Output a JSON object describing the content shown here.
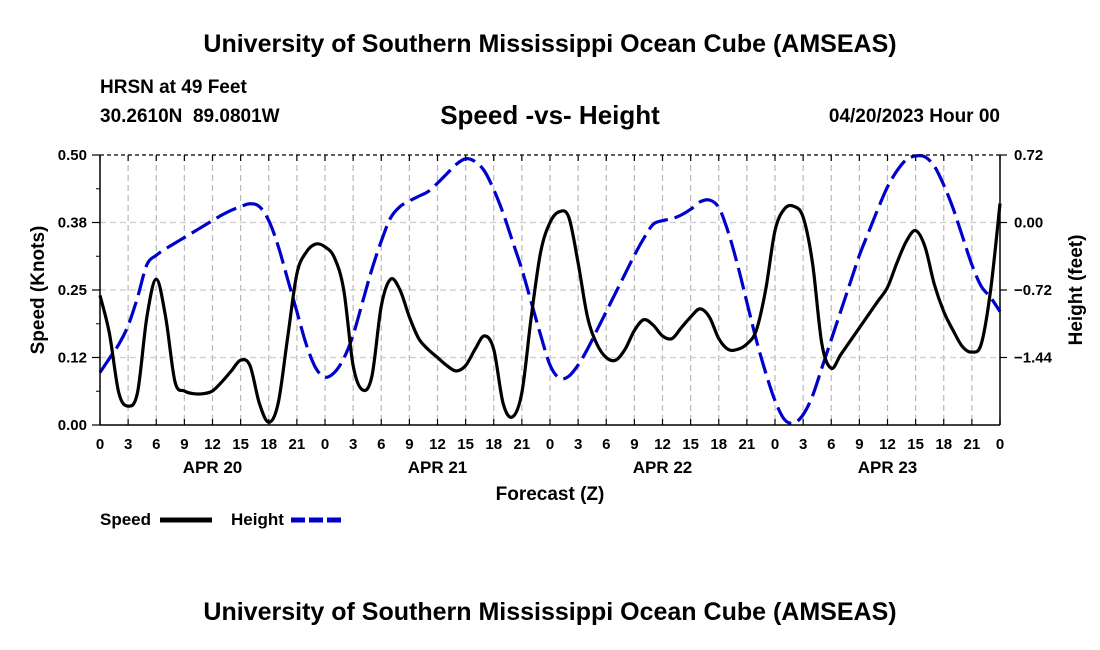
{
  "header": {
    "title": "University of Southern Mississippi Ocean Cube (AMSEAS)",
    "station": "HRSN at 49 Feet",
    "latitude": "30.2610N",
    "longitude": "89.0801W",
    "subtitle": "Speed -vs- Height",
    "run_time": "04/20/2023 Hour 00"
  },
  "footer": {
    "title": "University of Southern Mississippi Ocean Cube (AMSEAS)"
  },
  "chart_data": {
    "type": "line",
    "title": "Speed -vs- Height",
    "xlabel": "Forecast (Z)",
    "ylabel_left": "Speed (Knots)",
    "ylabel_right": "Height (feet)",
    "x_range_hours": [
      0,
      96
    ],
    "x_ticks": [
      0,
      3,
      6,
      9,
      12,
      15,
      18,
      21,
      24,
      27,
      30,
      33,
      36,
      39,
      42,
      45,
      48,
      51,
      54,
      57,
      60,
      63,
      66,
      69,
      72,
      75,
      78,
      81,
      84,
      87,
      90,
      93,
      96
    ],
    "x_tick_labels": [
      "0",
      "3",
      "6",
      "9",
      "12",
      "15",
      "18",
      "21",
      "0",
      "3",
      "6",
      "9",
      "12",
      "15",
      "18",
      "21",
      "0",
      "3",
      "6",
      "9",
      "12",
      "15",
      "18",
      "21",
      "0",
      "3",
      "6",
      "9",
      "12",
      "15",
      "18",
      "21",
      "0"
    ],
    "day_labels": [
      {
        "hour": 12,
        "label": "APR 20"
      },
      {
        "hour": 36,
        "label": "APR 21"
      },
      {
        "hour": 60,
        "label": "APR 22"
      },
      {
        "hour": 84,
        "label": "APR 23"
      }
    ],
    "y_left_range": [
      0,
      0.5
    ],
    "y_left_ticks": [
      0,
      0.125,
      0.25,
      0.375,
      0.5
    ],
    "y_left_tick_labels": [
      "0.00",
      "0.12",
      "0.25",
      "0.38",
      "0.50"
    ],
    "y_right_range": [
      -2.16,
      0.72
    ],
    "y_right_ticks": [
      -1.44,
      -0.72,
      0.0,
      0.72
    ],
    "y_right_tick_labels": [
      "−1.44",
      "−0.72",
      "0.00",
      "0.72"
    ],
    "grid": true,
    "series": [
      {
        "name": "Speed",
        "axis": "left",
        "color": "#000000",
        "style": "solid",
        "points": [
          [
            0,
            0.24
          ],
          [
            1,
            0.17
          ],
          [
            2,
            0.06
          ],
          [
            3,
            0.035
          ],
          [
            4,
            0.06
          ],
          [
            5,
            0.2
          ],
          [
            6,
            0.27
          ],
          [
            7,
            0.2
          ],
          [
            8,
            0.08
          ],
          [
            9,
            0.063
          ],
          [
            10,
            0.058
          ],
          [
            11,
            0.058
          ],
          [
            12,
            0.063
          ],
          [
            13,
            0.08
          ],
          [
            14,
            0.1
          ],
          [
            15,
            0.12
          ],
          [
            16,
            0.11
          ],
          [
            17,
            0.04
          ],
          [
            18,
            0.005
          ],
          [
            19,
            0.04
          ],
          [
            20,
            0.16
          ],
          [
            21,
            0.28
          ],
          [
            22,
            0.32
          ],
          [
            23,
            0.335
          ],
          [
            24,
            0.33
          ],
          [
            25,
            0.31
          ],
          [
            26,
            0.25
          ],
          [
            27,
            0.11
          ],
          [
            28,
            0.065
          ],
          [
            29,
            0.09
          ],
          [
            30,
            0.22
          ],
          [
            31,
            0.27
          ],
          [
            32,
            0.25
          ],
          [
            33,
            0.2
          ],
          [
            34,
            0.16
          ],
          [
            35,
            0.14
          ],
          [
            36,
            0.125
          ],
          [
            37,
            0.11
          ],
          [
            38,
            0.1
          ],
          [
            39,
            0.11
          ],
          [
            40,
            0.14
          ],
          [
            41,
            0.165
          ],
          [
            42,
            0.14
          ],
          [
            43,
            0.04
          ],
          [
            44,
            0.015
          ],
          [
            45,
            0.06
          ],
          [
            46,
            0.2
          ],
          [
            47,
            0.32
          ],
          [
            48,
            0.375
          ],
          [
            49,
            0.395
          ],
          [
            50,
            0.385
          ],
          [
            51,
            0.3
          ],
          [
            52,
            0.2
          ],
          [
            53,
            0.15
          ],
          [
            54,
            0.125
          ],
          [
            55,
            0.12
          ],
          [
            56,
            0.14
          ],
          [
            57,
            0.175
          ],
          [
            58,
            0.195
          ],
          [
            59,
            0.185
          ],
          [
            60,
            0.165
          ],
          [
            61,
            0.16
          ],
          [
            62,
            0.18
          ],
          [
            63,
            0.2
          ],
          [
            64,
            0.215
          ],
          [
            65,
            0.2
          ],
          [
            66,
            0.16
          ],
          [
            67,
            0.14
          ],
          [
            68,
            0.14
          ],
          [
            69,
            0.15
          ],
          [
            70,
            0.175
          ],
          [
            71,
            0.25
          ],
          [
            72,
            0.36
          ],
          [
            73,
            0.4
          ],
          [
            74,
            0.405
          ],
          [
            75,
            0.385
          ],
          [
            76,
            0.3
          ],
          [
            77,
            0.15
          ],
          [
            78,
            0.105
          ],
          [
            79,
            0.13
          ],
          [
            80,
            0.155
          ],
          [
            81,
            0.18
          ],
          [
            82,
            0.205
          ],
          [
            83,
            0.23
          ],
          [
            84,
            0.255
          ],
          [
            85,
            0.3
          ],
          [
            86,
            0.34
          ],
          [
            87,
            0.36
          ],
          [
            88,
            0.33
          ],
          [
            89,
            0.26
          ],
          [
            90,
            0.21
          ],
          [
            91,
            0.175
          ],
          [
            92,
            0.145
          ],
          [
            93,
            0.135
          ],
          [
            94,
            0.15
          ],
          [
            95,
            0.25
          ],
          [
            96,
            0.41
          ]
        ]
      },
      {
        "name": "Height",
        "axis": "right",
        "color": "#0000cc",
        "style": "dashed",
        "points": [
          [
            0,
            -1.6
          ],
          [
            1,
            -1.45
          ],
          [
            2,
            -1.3
          ],
          [
            3,
            -1.1
          ],
          [
            4,
            -0.8
          ],
          [
            5,
            -0.45
          ],
          [
            6,
            -0.35
          ],
          [
            7,
            -0.28
          ],
          [
            8,
            -0.22
          ],
          [
            9,
            -0.16
          ],
          [
            10,
            -0.1
          ],
          [
            11,
            -0.04
          ],
          [
            12,
            0.02
          ],
          [
            13,
            0.08
          ],
          [
            14,
            0.13
          ],
          [
            15,
            0.17
          ],
          [
            16,
            0.2
          ],
          [
            17,
            0.17
          ],
          [
            18,
            0.02
          ],
          [
            19,
            -0.25
          ],
          [
            20,
            -0.6
          ],
          [
            21,
            -0.95
          ],
          [
            22,
            -1.3
          ],
          [
            23,
            -1.55
          ],
          [
            24,
            -1.65
          ],
          [
            25,
            -1.6
          ],
          [
            26,
            -1.45
          ],
          [
            27,
            -1.2
          ],
          [
            28,
            -0.85
          ],
          [
            29,
            -0.5
          ],
          [
            30,
            -0.2
          ],
          [
            31,
            0.05
          ],
          [
            32,
            0.17
          ],
          [
            33,
            0.23
          ],
          [
            34,
            0.28
          ],
          [
            35,
            0.33
          ],
          [
            36,
            0.42
          ],
          [
            37,
            0.52
          ],
          [
            38,
            0.62
          ],
          [
            39,
            0.68
          ],
          [
            40,
            0.65
          ],
          [
            41,
            0.55
          ],
          [
            42,
            0.35
          ],
          [
            43,
            0.1
          ],
          [
            44,
            -0.2
          ],
          [
            45,
            -0.5
          ],
          [
            46,
            -0.85
          ],
          [
            47,
            -1.2
          ],
          [
            48,
            -1.52
          ],
          [
            49,
            -1.66
          ],
          [
            50,
            -1.64
          ],
          [
            51,
            -1.52
          ],
          [
            52,
            -1.35
          ],
          [
            53,
            -1.15
          ],
          [
            54,
            -0.95
          ],
          [
            55,
            -0.75
          ],
          [
            56,
            -0.55
          ],
          [
            57,
            -0.35
          ],
          [
            58,
            -0.17
          ],
          [
            59,
            -0.02
          ],
          [
            60,
            0.02
          ],
          [
            61,
            0.04
          ],
          [
            62,
            0.08
          ],
          [
            63,
            0.14
          ],
          [
            64,
            0.22
          ],
          [
            65,
            0.24
          ],
          [
            66,
            0.16
          ],
          [
            67,
            -0.1
          ],
          [
            68,
            -0.45
          ],
          [
            69,
            -0.85
          ],
          [
            70,
            -1.25
          ],
          [
            71,
            -1.6
          ],
          [
            72,
            -1.9
          ],
          [
            73,
            -2.1
          ],
          [
            74,
            -2.14
          ],
          [
            75,
            -2.05
          ],
          [
            76,
            -1.85
          ],
          [
            77,
            -1.55
          ],
          [
            78,
            -1.25
          ],
          [
            79,
            -0.95
          ],
          [
            80,
            -0.65
          ],
          [
            81,
            -0.35
          ],
          [
            82,
            -0.1
          ],
          [
            83,
            0.15
          ],
          [
            84,
            0.38
          ],
          [
            85,
            0.55
          ],
          [
            86,
            0.67
          ],
          [
            87,
            0.71
          ],
          [
            88,
            0.7
          ],
          [
            89,
            0.6
          ],
          [
            90,
            0.4
          ],
          [
            91,
            0.15
          ],
          [
            92,
            -0.15
          ],
          [
            93,
            -0.45
          ],
          [
            94,
            -0.68
          ],
          [
            95,
            -0.8
          ],
          [
            96,
            -0.95
          ]
        ]
      }
    ],
    "legend": {
      "position": "bottom-left",
      "items": [
        {
          "label": "Speed",
          "color": "#000000",
          "style": "solid"
        },
        {
          "label": "Height",
          "color": "#0000cc",
          "style": "dashed"
        }
      ]
    }
  }
}
